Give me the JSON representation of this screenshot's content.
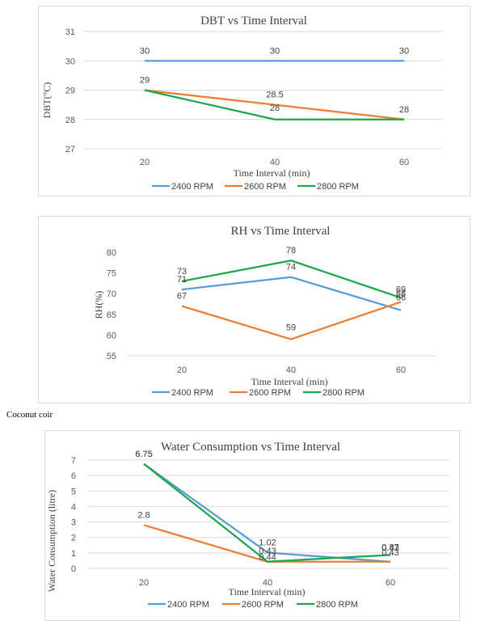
{
  "caption": "Coconut coir",
  "colors": {
    "s2400": "#5b9bd5",
    "s2600": "#ed7d31",
    "s2800": "#1aa84a"
  },
  "chart_data": [
    {
      "id": "dbt",
      "type": "line",
      "title": "DBT vs Time Interval",
      "xlabel": "Time  Interval  (min)",
      "ylabel": "DBT(°C)",
      "categories": [
        "20",
        "40",
        "60"
      ],
      "ylim": [
        27,
        31
      ],
      "yticks": [
        27,
        28,
        29,
        30,
        31
      ],
      "grid": true,
      "legend": "bottom",
      "series": [
        {
          "name": "2400 RPM",
          "values": [
            30,
            30,
            30
          ],
          "labels": [
            "30",
            "30",
            "30"
          ]
        },
        {
          "name": "2600 RPM",
          "values": [
            29,
            28.5,
            28
          ],
          "labels": [
            "",
            "28.5",
            ""
          ]
        },
        {
          "name": "2800 RPM",
          "values": [
            29,
            28,
            28
          ],
          "labels": [
            "29",
            "28",
            "28"
          ]
        }
      ]
    },
    {
      "id": "rh",
      "type": "line",
      "title": "RH vs Time Interval",
      "xlabel": "Time  Interval  (min)",
      "ylabel": "RH(%)",
      "categories": [
        "20",
        "40",
        "60"
      ],
      "ylim": [
        55,
        80
      ],
      "yticks": [
        55,
        60,
        65,
        70,
        75,
        80
      ],
      "grid": false,
      "legend": "bottom",
      "series": [
        {
          "name": "2400 RPM",
          "values": [
            71,
            74,
            66
          ],
          "labels": [
            "71",
            "74",
            "66"
          ]
        },
        {
          "name": "2600 RPM",
          "values": [
            67,
            59,
            68
          ],
          "labels": [
            "67",
            "59",
            "68"
          ]
        },
        {
          "name": "2800 RPM",
          "values": [
            73,
            78,
            69
          ],
          "labels": [
            "73",
            "78",
            "69"
          ]
        }
      ]
    },
    {
      "id": "water",
      "type": "line",
      "title": "Water Consumption vs Time Interval",
      "xlabel": "Time  Interval  (min)",
      "ylabel": "Water  Consumption  (litre)",
      "categories": [
        "20",
        "40",
        "60"
      ],
      "ylim": [
        0,
        7
      ],
      "yticks": [
        0,
        1,
        2,
        3,
        4,
        5,
        6,
        7
      ],
      "grid": true,
      "legend": "bottom",
      "series": [
        {
          "name": "2400 RPM",
          "values": [
            6.75,
            1.02,
            0.43
          ],
          "labels": [
            "6.75",
            "1.02",
            "0.43"
          ]
        },
        {
          "name": "2600 RPM",
          "values": [
            2.8,
            0.43,
            0.43
          ],
          "labels": [
            "2.8",
            "0.43",
            "0.43"
          ]
        },
        {
          "name": "2800 RPM",
          "values": [
            6.75,
            0.44,
            0.87
          ],
          "labels": [
            "6.75",
            "0.44",
            "0.87"
          ]
        }
      ]
    }
  ]
}
